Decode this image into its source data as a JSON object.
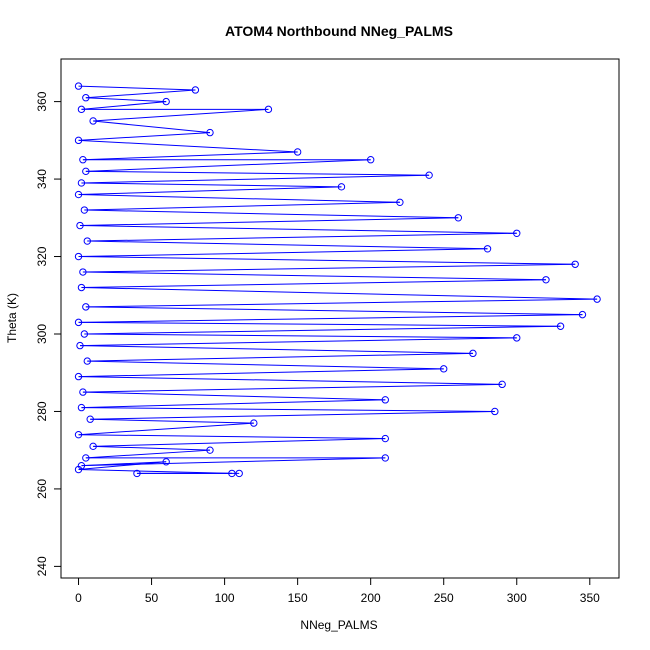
{
  "chart_data": {
    "type": "scatter",
    "title": "ATOM4 Northbound NNeg_PALMS",
    "xlabel": "NNeg_PALMS",
    "ylabel": "Theta (K)",
    "xlim": [
      -12,
      370
    ],
    "ylim": [
      237,
      371
    ],
    "x_ticks": [
      "0",
      "50",
      "100",
      "150",
      "200",
      "250",
      "300",
      "350"
    ],
    "y_ticks": [
      "240",
      "260",
      "280",
      "300",
      "320",
      "340",
      "360"
    ],
    "x_tick_values": [
      0,
      50,
      100,
      150,
      200,
      250,
      300,
      350
    ],
    "y_tick_values": [
      240,
      260,
      280,
      300,
      320,
      340,
      360
    ],
    "point_style": "open-circle",
    "line_style": "connected-profiles",
    "series_color": "#0000ff",
    "grid": false,
    "legend": "none",
    "series": [
      {
        "values": [
          {
            "x": 0,
            "y": 364
          },
          {
            "x": 80,
            "y": 363
          },
          {
            "x": 5,
            "y": 361
          },
          {
            "x": 60,
            "y": 360
          },
          {
            "x": 2,
            "y": 358
          },
          {
            "x": 130,
            "y": 358
          },
          {
            "x": 10,
            "y": 355
          },
          {
            "x": 90,
            "y": 352
          },
          {
            "x": 0,
            "y": 350
          },
          {
            "x": 150,
            "y": 347
          },
          {
            "x": 3,
            "y": 345
          },
          {
            "x": 200,
            "y": 345
          },
          {
            "x": 5,
            "y": 342
          },
          {
            "x": 240,
            "y": 341
          },
          {
            "x": 2,
            "y": 339
          },
          {
            "x": 180,
            "y": 338
          },
          {
            "x": 0,
            "y": 336
          },
          {
            "x": 220,
            "y": 334
          },
          {
            "x": 4,
            "y": 332
          },
          {
            "x": 260,
            "y": 330
          },
          {
            "x": 1,
            "y": 328
          },
          {
            "x": 300,
            "y": 326
          },
          {
            "x": 6,
            "y": 324
          },
          {
            "x": 280,
            "y": 322
          },
          {
            "x": 0,
            "y": 320
          },
          {
            "x": 340,
            "y": 318
          },
          {
            "x": 3,
            "y": 316
          },
          {
            "x": 320,
            "y": 314
          },
          {
            "x": 2,
            "y": 312
          },
          {
            "x": 355,
            "y": 309
          },
          {
            "x": 5,
            "y": 307
          },
          {
            "x": 345,
            "y": 305
          },
          {
            "x": 0,
            "y": 303
          },
          {
            "x": 330,
            "y": 302
          },
          {
            "x": 4,
            "y": 300
          },
          {
            "x": 300,
            "y": 299
          },
          {
            "x": 1,
            "y": 297
          },
          {
            "x": 270,
            "y": 295
          },
          {
            "x": 6,
            "y": 293
          },
          {
            "x": 250,
            "y": 291
          },
          {
            "x": 0,
            "y": 289
          },
          {
            "x": 290,
            "y": 287
          },
          {
            "x": 3,
            "y": 285
          },
          {
            "x": 210,
            "y": 283
          },
          {
            "x": 2,
            "y": 281
          },
          {
            "x": 285,
            "y": 280
          },
          {
            "x": 8,
            "y": 278
          },
          {
            "x": 120,
            "y": 277
          },
          {
            "x": 0,
            "y": 274
          },
          {
            "x": 210,
            "y": 273
          },
          {
            "x": 10,
            "y": 271
          },
          {
            "x": 90,
            "y": 270
          },
          {
            "x": 5,
            "y": 268
          },
          {
            "x": 210,
            "y": 268
          },
          {
            "x": 2,
            "y": 266
          },
          {
            "x": 60,
            "y": 267
          },
          {
            "x": 0,
            "y": 265
          },
          {
            "x": 105,
            "y": 264
          },
          {
            "x": 40,
            "y": 264
          },
          {
            "x": 110,
            "y": 264
          }
        ]
      }
    ]
  }
}
